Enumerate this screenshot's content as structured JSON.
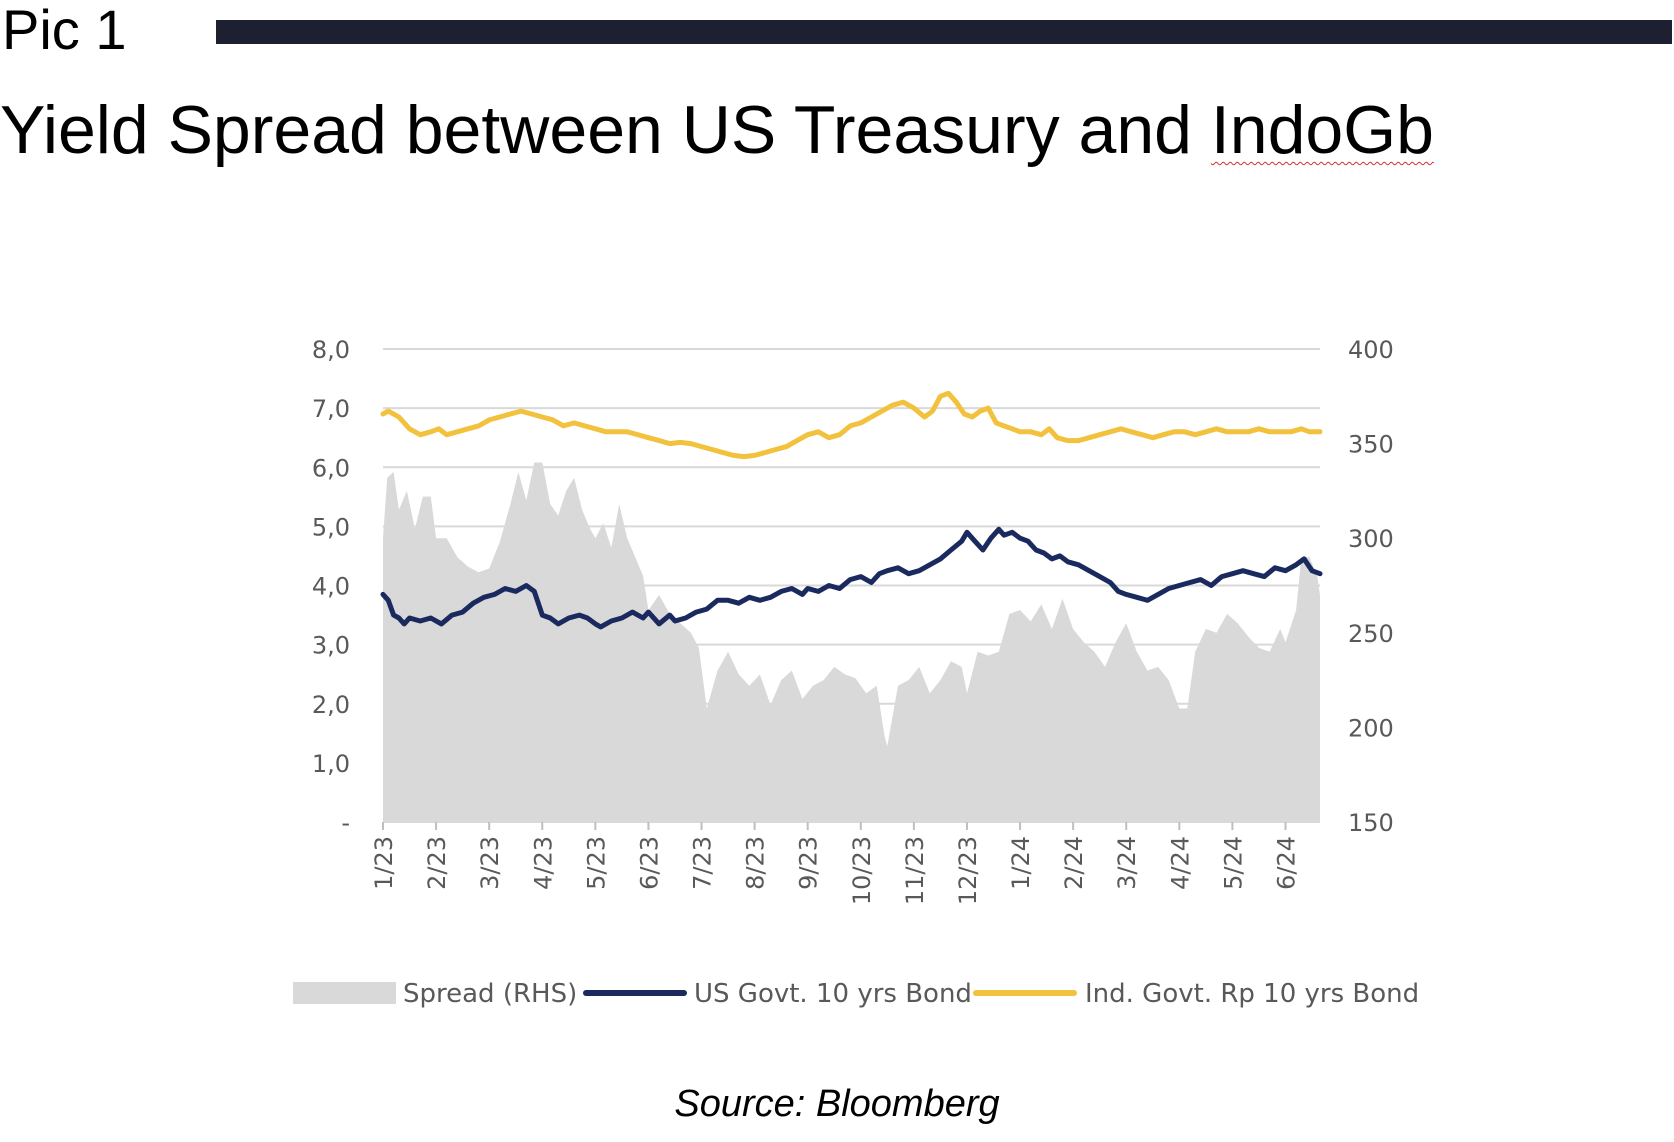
{
  "header": {
    "pic_label": "Pic 1",
    "title_main": "Yield Spread between US Treasury and ",
    "title_word": "IndoGb"
  },
  "source": "Source: Bloomberg",
  "colors": {
    "spread": "#d9d9d9",
    "us": "#1a2a5e",
    "ind": "#f2c13d",
    "grid": "#d9d9d9",
    "axis_text": "#595959",
    "header_bar": "#1c2030"
  },
  "chart_data": {
    "type": "area+line",
    "x_labels": [
      "1/23",
      "2/23",
      "3/23",
      "4/23",
      "5/23",
      "6/23",
      "7/23",
      "8/23",
      "9/23",
      "10/23",
      "11/23",
      "12/23",
      "1/24",
      "2/24",
      "3/24",
      "4/24",
      "5/24",
      "6/24"
    ],
    "y_left": {
      "ticks": [
        "8,0",
        "7,0",
        "6,0",
        "5,0",
        "4,0",
        "3,0",
        "2,0",
        "1,0",
        "-"
      ],
      "range": [
        0,
        8
      ]
    },
    "y_right": {
      "ticks": [
        "400",
        "350",
        "300",
        "250",
        "200",
        "150"
      ],
      "range": [
        150,
        400
      ]
    },
    "legend": [
      "Spread (RHS)",
      "US Govt. 10 yrs Bond",
      "Ind. Govt. Rp 10 yrs Bond"
    ],
    "x_range": [
      0,
      17.65
    ],
    "series": [
      {
        "name": "Spread (RHS)",
        "type": "area",
        "axis": "right",
        "points": [
          [
            0,
            300
          ],
          [
            0.08,
            332
          ],
          [
            0.2,
            335
          ],
          [
            0.3,
            315
          ],
          [
            0.45,
            325
          ],
          [
            0.6,
            305
          ],
          [
            0.75,
            322
          ],
          [
            0.9,
            322
          ],
          [
            1.0,
            300
          ],
          [
            1.2,
            300
          ],
          [
            1.4,
            290
          ],
          [
            1.6,
            285
          ],
          [
            1.8,
            282
          ],
          [
            2.0,
            284
          ],
          [
            2.2,
            298
          ],
          [
            2.4,
            318
          ],
          [
            2.55,
            335
          ],
          [
            2.7,
            320
          ],
          [
            2.85,
            340
          ],
          [
            3.0,
            340
          ],
          [
            3.15,
            318
          ],
          [
            3.3,
            312
          ],
          [
            3.45,
            325
          ],
          [
            3.6,
            332
          ],
          [
            3.75,
            315
          ],
          [
            3.9,
            305
          ],
          [
            4.0,
            300
          ],
          [
            4.15,
            308
          ],
          [
            4.3,
            295
          ],
          [
            4.45,
            318
          ],
          [
            4.6,
            300
          ],
          [
            4.75,
            290
          ],
          [
            4.9,
            280
          ],
          [
            5.0,
            262
          ],
          [
            5.2,
            270
          ],
          [
            5.4,
            260
          ],
          [
            5.6,
            255
          ],
          [
            5.8,
            250
          ],
          [
            5.95,
            242
          ],
          [
            6.1,
            210
          ],
          [
            6.3,
            230
          ],
          [
            6.5,
            240
          ],
          [
            6.7,
            228
          ],
          [
            6.9,
            222
          ],
          [
            7.1,
            228
          ],
          [
            7.3,
            212
          ],
          [
            7.5,
            225
          ],
          [
            7.7,
            230
          ],
          [
            7.9,
            215
          ],
          [
            8.1,
            222
          ],
          [
            8.3,
            225
          ],
          [
            8.5,
            232
          ],
          [
            8.7,
            228
          ],
          [
            8.9,
            226
          ],
          [
            9.1,
            218
          ],
          [
            9.3,
            222
          ],
          [
            9.45,
            195
          ],
          [
            9.5,
            190
          ],
          [
            9.7,
            222
          ],
          [
            9.9,
            225
          ],
          [
            10.1,
            232
          ],
          [
            10.3,
            218
          ],
          [
            10.5,
            225
          ],
          [
            10.7,
            235
          ],
          [
            10.9,
            232
          ],
          [
            11.0,
            218
          ],
          [
            11.2,
            240
          ],
          [
            11.4,
            238
          ],
          [
            11.6,
            240
          ],
          [
            11.8,
            260
          ],
          [
            12.0,
            262
          ],
          [
            12.2,
            256
          ],
          [
            12.4,
            265
          ],
          [
            12.6,
            252
          ],
          [
            12.8,
            268
          ],
          [
            13.0,
            252
          ],
          [
            13.2,
            245
          ],
          [
            13.4,
            240
          ],
          [
            13.6,
            232
          ],
          [
            13.8,
            245
          ],
          [
            14.0,
            255
          ],
          [
            14.2,
            240
          ],
          [
            14.4,
            230
          ],
          [
            14.6,
            232
          ],
          [
            14.8,
            225
          ],
          [
            15.0,
            210
          ],
          [
            15.15,
            210
          ],
          [
            15.3,
            240
          ],
          [
            15.5,
            252
          ],
          [
            15.7,
            250
          ],
          [
            15.9,
            260
          ],
          [
            16.1,
            255
          ],
          [
            16.3,
            248
          ],
          [
            16.5,
            242
          ],
          [
            16.7,
            240
          ],
          [
            16.9,
            252
          ],
          [
            17.0,
            245
          ],
          [
            17.2,
            262
          ],
          [
            17.3,
            290
          ],
          [
            17.45,
            290
          ],
          [
            17.6,
            280
          ],
          [
            17.65,
            270
          ]
        ]
      },
      {
        "name": "US Govt. 10 yrs Bond",
        "type": "line",
        "axis": "left",
        "points": [
          [
            0,
            3.85
          ],
          [
            0.1,
            3.75
          ],
          [
            0.2,
            3.5
          ],
          [
            0.3,
            3.45
          ],
          [
            0.4,
            3.35
          ],
          [
            0.5,
            3.45
          ],
          [
            0.7,
            3.4
          ],
          [
            0.9,
            3.45
          ],
          [
            1.1,
            3.35
          ],
          [
            1.3,
            3.5
          ],
          [
            1.5,
            3.55
          ],
          [
            1.7,
            3.7
          ],
          [
            1.9,
            3.8
          ],
          [
            2.1,
            3.85
          ],
          [
            2.3,
            3.95
          ],
          [
            2.5,
            3.9
          ],
          [
            2.7,
            4.0
          ],
          [
            2.85,
            3.9
          ],
          [
            3.0,
            3.5
          ],
          [
            3.15,
            3.45
          ],
          [
            3.3,
            3.35
          ],
          [
            3.5,
            3.45
          ],
          [
            3.7,
            3.5
          ],
          [
            3.85,
            3.45
          ],
          [
            4.0,
            3.35
          ],
          [
            4.1,
            3.3
          ],
          [
            4.3,
            3.4
          ],
          [
            4.5,
            3.45
          ],
          [
            4.7,
            3.55
          ],
          [
            4.9,
            3.45
          ],
          [
            5.0,
            3.55
          ],
          [
            5.2,
            3.35
          ],
          [
            5.4,
            3.5
          ],
          [
            5.5,
            3.4
          ],
          [
            5.7,
            3.45
          ],
          [
            5.9,
            3.55
          ],
          [
            6.1,
            3.6
          ],
          [
            6.3,
            3.75
          ],
          [
            6.5,
            3.75
          ],
          [
            6.7,
            3.7
          ],
          [
            6.9,
            3.8
          ],
          [
            7.1,
            3.75
          ],
          [
            7.3,
            3.8
          ],
          [
            7.5,
            3.9
          ],
          [
            7.7,
            3.95
          ],
          [
            7.9,
            3.85
          ],
          [
            8.0,
            3.95
          ],
          [
            8.2,
            3.9
          ],
          [
            8.4,
            4.0
          ],
          [
            8.6,
            3.95
          ],
          [
            8.8,
            4.1
          ],
          [
            9.0,
            4.15
          ],
          [
            9.2,
            4.05
          ],
          [
            9.35,
            4.2
          ],
          [
            9.5,
            4.25
          ],
          [
            9.7,
            4.3
          ],
          [
            9.9,
            4.2
          ],
          [
            10.1,
            4.25
          ],
          [
            10.3,
            4.35
          ],
          [
            10.5,
            4.45
          ],
          [
            10.7,
            4.6
          ],
          [
            10.9,
            4.75
          ],
          [
            11.0,
            4.9
          ],
          [
            11.15,
            4.75
          ],
          [
            11.3,
            4.6
          ],
          [
            11.45,
            4.8
          ],
          [
            11.6,
            4.95
          ],
          [
            11.7,
            4.85
          ],
          [
            11.85,
            4.9
          ],
          [
            12.0,
            4.8
          ],
          [
            12.15,
            4.75
          ],
          [
            12.3,
            4.6
          ],
          [
            12.45,
            4.55
          ],
          [
            12.6,
            4.45
          ],
          [
            12.75,
            4.5
          ],
          [
            12.9,
            4.4
          ],
          [
            13.1,
            4.35
          ],
          [
            13.3,
            4.25
          ],
          [
            13.5,
            4.15
          ],
          [
            13.7,
            4.05
          ],
          [
            13.85,
            3.9
          ],
          [
            14.0,
            3.85
          ],
          [
            14.2,
            3.8
          ],
          [
            14.4,
            3.75
          ],
          [
            14.6,
            3.85
          ],
          [
            14.8,
            3.95
          ],
          [
            15.0,
            4.0
          ],
          [
            15.2,
            4.05
          ],
          [
            15.4,
            4.1
          ],
          [
            15.6,
            4.0
          ],
          [
            15.8,
            4.15
          ],
          [
            16.0,
            4.2
          ],
          [
            16.2,
            4.25
          ],
          [
            16.4,
            4.2
          ],
          [
            16.6,
            4.15
          ],
          [
            16.8,
            4.3
          ],
          [
            17.0,
            4.25
          ],
          [
            17.2,
            4.35
          ],
          [
            17.35,
            4.45
          ],
          [
            17.5,
            4.25
          ],
          [
            17.65,
            4.2
          ]
        ]
      },
      {
        "name": "Ind. Govt. Rp 10 yrs Bond",
        "type": "line",
        "axis": "left",
        "points": [
          [
            0,
            6.9
          ],
          [
            0.1,
            6.95
          ],
          [
            0.3,
            6.85
          ],
          [
            0.5,
            6.65
          ],
          [
            0.7,
            6.55
          ],
          [
            0.9,
            6.6
          ],
          [
            1.05,
            6.65
          ],
          [
            1.2,
            6.55
          ],
          [
            1.4,
            6.6
          ],
          [
            1.6,
            6.65
          ],
          [
            1.8,
            6.7
          ],
          [
            2.0,
            6.8
          ],
          [
            2.2,
            6.85
          ],
          [
            2.4,
            6.9
          ],
          [
            2.6,
            6.95
          ],
          [
            2.8,
            6.9
          ],
          [
            3.0,
            6.85
          ],
          [
            3.2,
            6.8
          ],
          [
            3.4,
            6.7
          ],
          [
            3.6,
            6.75
          ],
          [
            3.8,
            6.7
          ],
          [
            4.0,
            6.65
          ],
          [
            4.2,
            6.6
          ],
          [
            4.4,
            6.6
          ],
          [
            4.6,
            6.6
          ],
          [
            4.8,
            6.55
          ],
          [
            5.0,
            6.5
          ],
          [
            5.2,
            6.45
          ],
          [
            5.4,
            6.4
          ],
          [
            5.6,
            6.42
          ],
          [
            5.8,
            6.4
          ],
          [
            6.0,
            6.35
          ],
          [
            6.2,
            6.3
          ],
          [
            6.4,
            6.25
          ],
          [
            6.6,
            6.2
          ],
          [
            6.8,
            6.18
          ],
          [
            7.0,
            6.2
          ],
          [
            7.2,
            6.25
          ],
          [
            7.4,
            6.3
          ],
          [
            7.6,
            6.35
          ],
          [
            7.8,
            6.45
          ],
          [
            8.0,
            6.55
          ],
          [
            8.2,
            6.6
          ],
          [
            8.4,
            6.5
          ],
          [
            8.6,
            6.55
          ],
          [
            8.8,
            6.7
          ],
          [
            9.0,
            6.75
          ],
          [
            9.2,
            6.85
          ],
          [
            9.4,
            6.95
          ],
          [
            9.6,
            7.05
          ],
          [
            9.8,
            7.1
          ],
          [
            10.0,
            7.0
          ],
          [
            10.2,
            6.85
          ],
          [
            10.35,
            6.95
          ],
          [
            10.5,
            7.2
          ],
          [
            10.65,
            7.25
          ],
          [
            10.8,
            7.1
          ],
          [
            10.95,
            6.9
          ],
          [
            11.1,
            6.85
          ],
          [
            11.25,
            6.95
          ],
          [
            11.4,
            7.0
          ],
          [
            11.55,
            6.75
          ],
          [
            11.7,
            6.7
          ],
          [
            11.85,
            6.65
          ],
          [
            12.0,
            6.6
          ],
          [
            12.2,
            6.6
          ],
          [
            12.4,
            6.55
          ],
          [
            12.55,
            6.65
          ],
          [
            12.7,
            6.5
          ],
          [
            12.9,
            6.45
          ],
          [
            13.1,
            6.45
          ],
          [
            13.3,
            6.5
          ],
          [
            13.5,
            6.55
          ],
          [
            13.7,
            6.6
          ],
          [
            13.9,
            6.65
          ],
          [
            14.1,
            6.6
          ],
          [
            14.3,
            6.55
          ],
          [
            14.5,
            6.5
          ],
          [
            14.7,
            6.55
          ],
          [
            14.9,
            6.6
          ],
          [
            15.1,
            6.6
          ],
          [
            15.3,
            6.55
          ],
          [
            15.5,
            6.6
          ],
          [
            15.7,
            6.65
          ],
          [
            15.9,
            6.6
          ],
          [
            16.1,
            6.6
          ],
          [
            16.3,
            6.6
          ],
          [
            16.5,
            6.65
          ],
          [
            16.7,
            6.6
          ],
          [
            16.9,
            6.6
          ],
          [
            17.1,
            6.6
          ],
          [
            17.3,
            6.65
          ],
          [
            17.45,
            6.6
          ],
          [
            17.55,
            6.6
          ],
          [
            17.65,
            6.6
          ]
        ]
      }
    ]
  }
}
